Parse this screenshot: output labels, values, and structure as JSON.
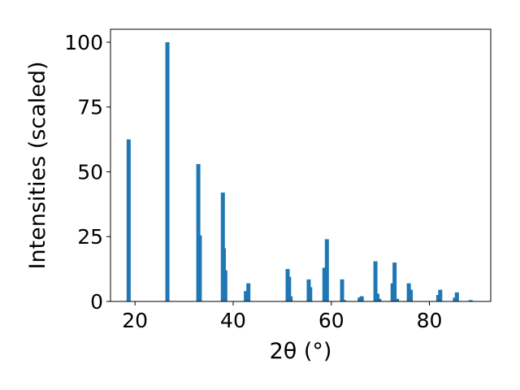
{
  "chart_data": {
    "type": "bar",
    "title": "",
    "xlabel": "2θ (°)",
    "ylabel": "Intensities (scaled)",
    "xlim": [
      15,
      92.5
    ],
    "ylim": [
      0,
      105
    ],
    "grid": false,
    "bar_color": "#1f77b4",
    "xticks": [
      20,
      40,
      60,
      80
    ],
    "xtick_labels": [
      "20",
      "40",
      "60",
      "80"
    ],
    "yticks": [
      0,
      25,
      50,
      75,
      100
    ],
    "ytick_labels": [
      "0",
      "25",
      "50",
      "75",
      "100"
    ],
    "series": [
      {
        "x": [
          18.7,
          26.6,
          32.9,
          33.2,
          37.9,
          38.1,
          38.4,
          42.6,
          43.1,
          51.1,
          51.4,
          51.7,
          55.4,
          55.7,
          58.6,
          59.1,
          62.2,
          62.6,
          65.8,
          66.2,
          69.0,
          69.4,
          69.8,
          72.5,
          72.9,
          73.4,
          75.8,
          76.2,
          81.8,
          82.2,
          85.2,
          85.6,
          88.4
        ],
        "y": [
          62.5,
          100,
          53,
          25.5,
          42,
          20.5,
          12,
          4,
          7,
          12.5,
          9.5,
          2,
          8.5,
          5.5,
          13,
          24,
          8.5,
          0.5,
          1.5,
          2,
          15.5,
          3,
          1,
          7,
          15,
          1,
          7,
          4.5,
          2.5,
          4.5,
          1.5,
          3.5,
          0.5
        ]
      }
    ]
  }
}
